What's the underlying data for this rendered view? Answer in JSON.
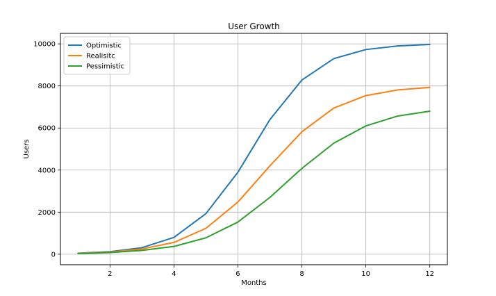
{
  "chart_data": {
    "type": "line",
    "title": "User Growth",
    "xlabel": "Months",
    "ylabel": "Users",
    "x": [
      1,
      2,
      3,
      4,
      5,
      6,
      7,
      8,
      9,
      10,
      11,
      12
    ],
    "xlim": [
      0.45,
      12.55
    ],
    "ylim": [
      -500,
      10500
    ],
    "xticks": [
      2,
      4,
      6,
      8,
      10,
      12
    ],
    "yticks": [
      0,
      2000,
      4000,
      6000,
      8000,
      10000
    ],
    "grid": true,
    "legend_position": "top-left",
    "series": [
      {
        "name": "Optimistic",
        "color": "#1f77b4",
        "values": [
          50,
          120,
          310,
          800,
          1930,
          3900,
          6400,
          8280,
          9300,
          9730,
          9900,
          9970
        ]
      },
      {
        "name": "Realisitc",
        "color": "#ff7f0e",
        "values": [
          40,
          100,
          250,
          560,
          1230,
          2480,
          4200,
          5820,
          6950,
          7540,
          7810,
          7930
        ]
      },
      {
        "name": "Pessimistic",
        "color": "#2ca02c",
        "values": [
          30,
          80,
          180,
          370,
          780,
          1530,
          2700,
          4080,
          5280,
          6100,
          6570,
          6800
        ]
      }
    ]
  }
}
